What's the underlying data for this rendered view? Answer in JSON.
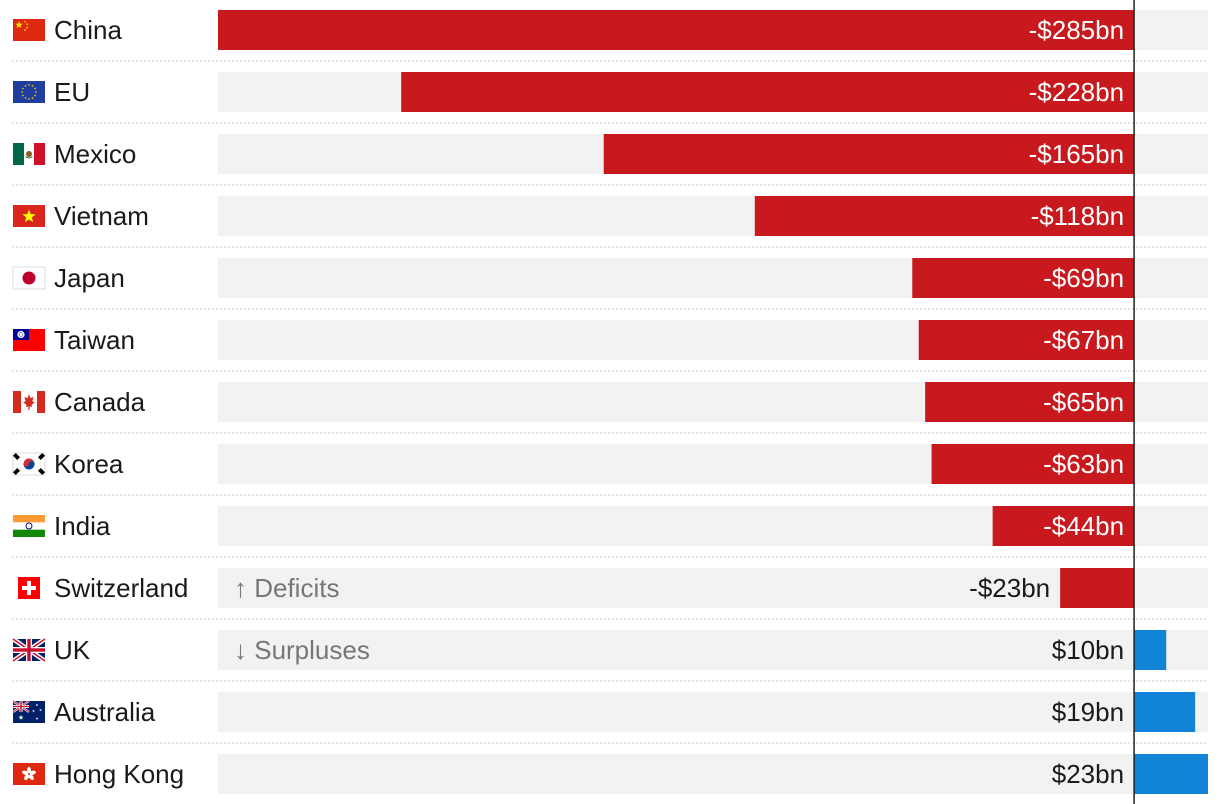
{
  "chart_data": {
    "type": "bar",
    "orientation": "horizontal",
    "title": "",
    "xlabel": "",
    "ylabel": "",
    "unit": "$bn",
    "xlim": [
      -285,
      23
    ],
    "grid": false,
    "colors": {
      "deficit": "#c8191e",
      "surplus": "#1184d8",
      "track": "#f2f2f2",
      "axis": "#222222",
      "label_light": "#ffffff",
      "label_dark": "#1a1a1a",
      "annotation": "#777777"
    },
    "categories": [
      "China",
      "EU",
      "Mexico",
      "Vietnam",
      "Japan",
      "Taiwan",
      "Canada",
      "Korea",
      "India",
      "Switzerland",
      "UK",
      "Australia",
      "Hong Kong"
    ],
    "values": [
      -285,
      -228,
      -165,
      -118,
      -69,
      -67,
      -65,
      -63,
      -44,
      -23,
      10,
      19,
      23
    ],
    "value_labels": [
      "-$285bn",
      "-$228bn",
      "-$165bn",
      "-$118bn",
      "-$69bn",
      "-$67bn",
      "-$65bn",
      "-$63bn",
      "-$44bn",
      "-$23bn",
      "$10bn",
      "$19bn",
      "$23bn"
    ],
    "flag_icons": [
      "china-flag-icon",
      "eu-flag-icon",
      "mexico-flag-icon",
      "vietnam-flag-icon",
      "japan-flag-icon",
      "taiwan-flag-icon",
      "canada-flag-icon",
      "korea-flag-icon",
      "india-flag-icon",
      "switzerland-flag-icon",
      "uk-flag-icon",
      "australia-flag-icon",
      "hong-kong-flag-icon"
    ],
    "annotations": [
      {
        "text": "↑ Deficits",
        "row": 9
      },
      {
        "text": "↓ Surpluses",
        "row": 10
      }
    ]
  }
}
